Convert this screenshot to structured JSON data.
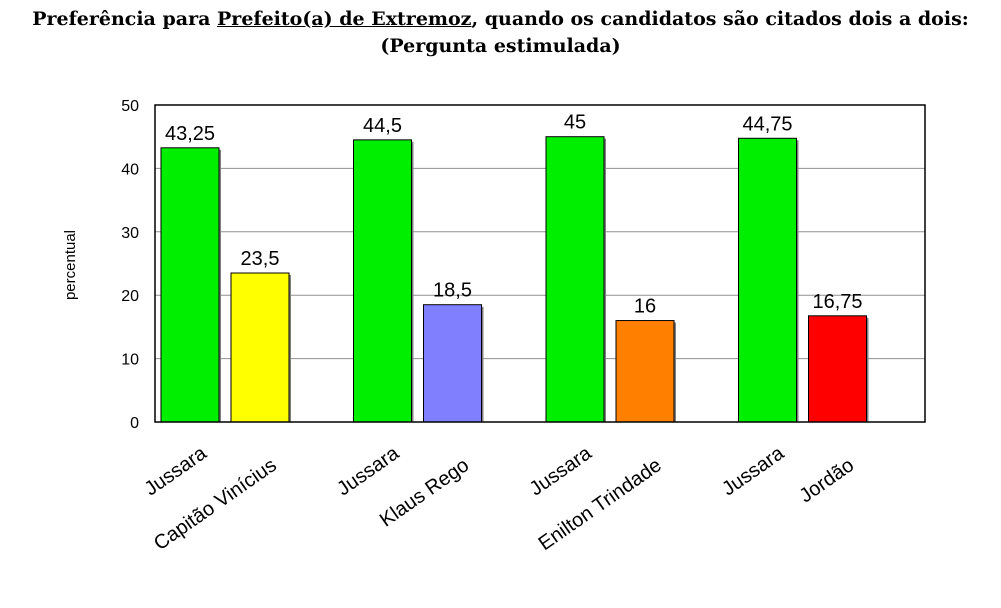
{
  "title": {
    "part1": "Preferência para ",
    "underlined": "Prefeito(a) de Extremoz",
    "part2": ", quando os candidatos são citados dois a dois:",
    "line2": "(Pergunta estimulada)"
  },
  "chart_data": {
    "type": "bar",
    "ylabel": "percentual",
    "xlabel": "",
    "ylim": [
      0,
      50
    ],
    "yticks": [
      0,
      10,
      20,
      30,
      40,
      50
    ],
    "grid": true,
    "groups": [
      {
        "bars": [
          {
            "label": "Jussara",
            "value": 43.25,
            "display": "43,25",
            "color": "#00ee00"
          },
          {
            "label": "Capitão Vinícius",
            "value": 23.5,
            "display": "23,5",
            "color": "#ffff00"
          }
        ]
      },
      {
        "bars": [
          {
            "label": "Jussara",
            "value": 44.5,
            "display": "44,5",
            "color": "#00ee00"
          },
          {
            "label": "Klaus Rego",
            "value": 18.5,
            "display": "18,5",
            "color": "#8080ff"
          }
        ]
      },
      {
        "bars": [
          {
            "label": "Jussara",
            "value": 45,
            "display": "45",
            "color": "#00ee00"
          },
          {
            "label": "Enilton Trindade",
            "value": 16,
            "display": "16",
            "color": "#ff8000"
          }
        ]
      },
      {
        "bars": [
          {
            "label": "Jussara",
            "value": 44.75,
            "display": "44,75",
            "color": "#00ee00"
          },
          {
            "label": "Jordão",
            "value": 16.75,
            "display": "16,75",
            "color": "#ff0000"
          }
        ]
      }
    ]
  }
}
